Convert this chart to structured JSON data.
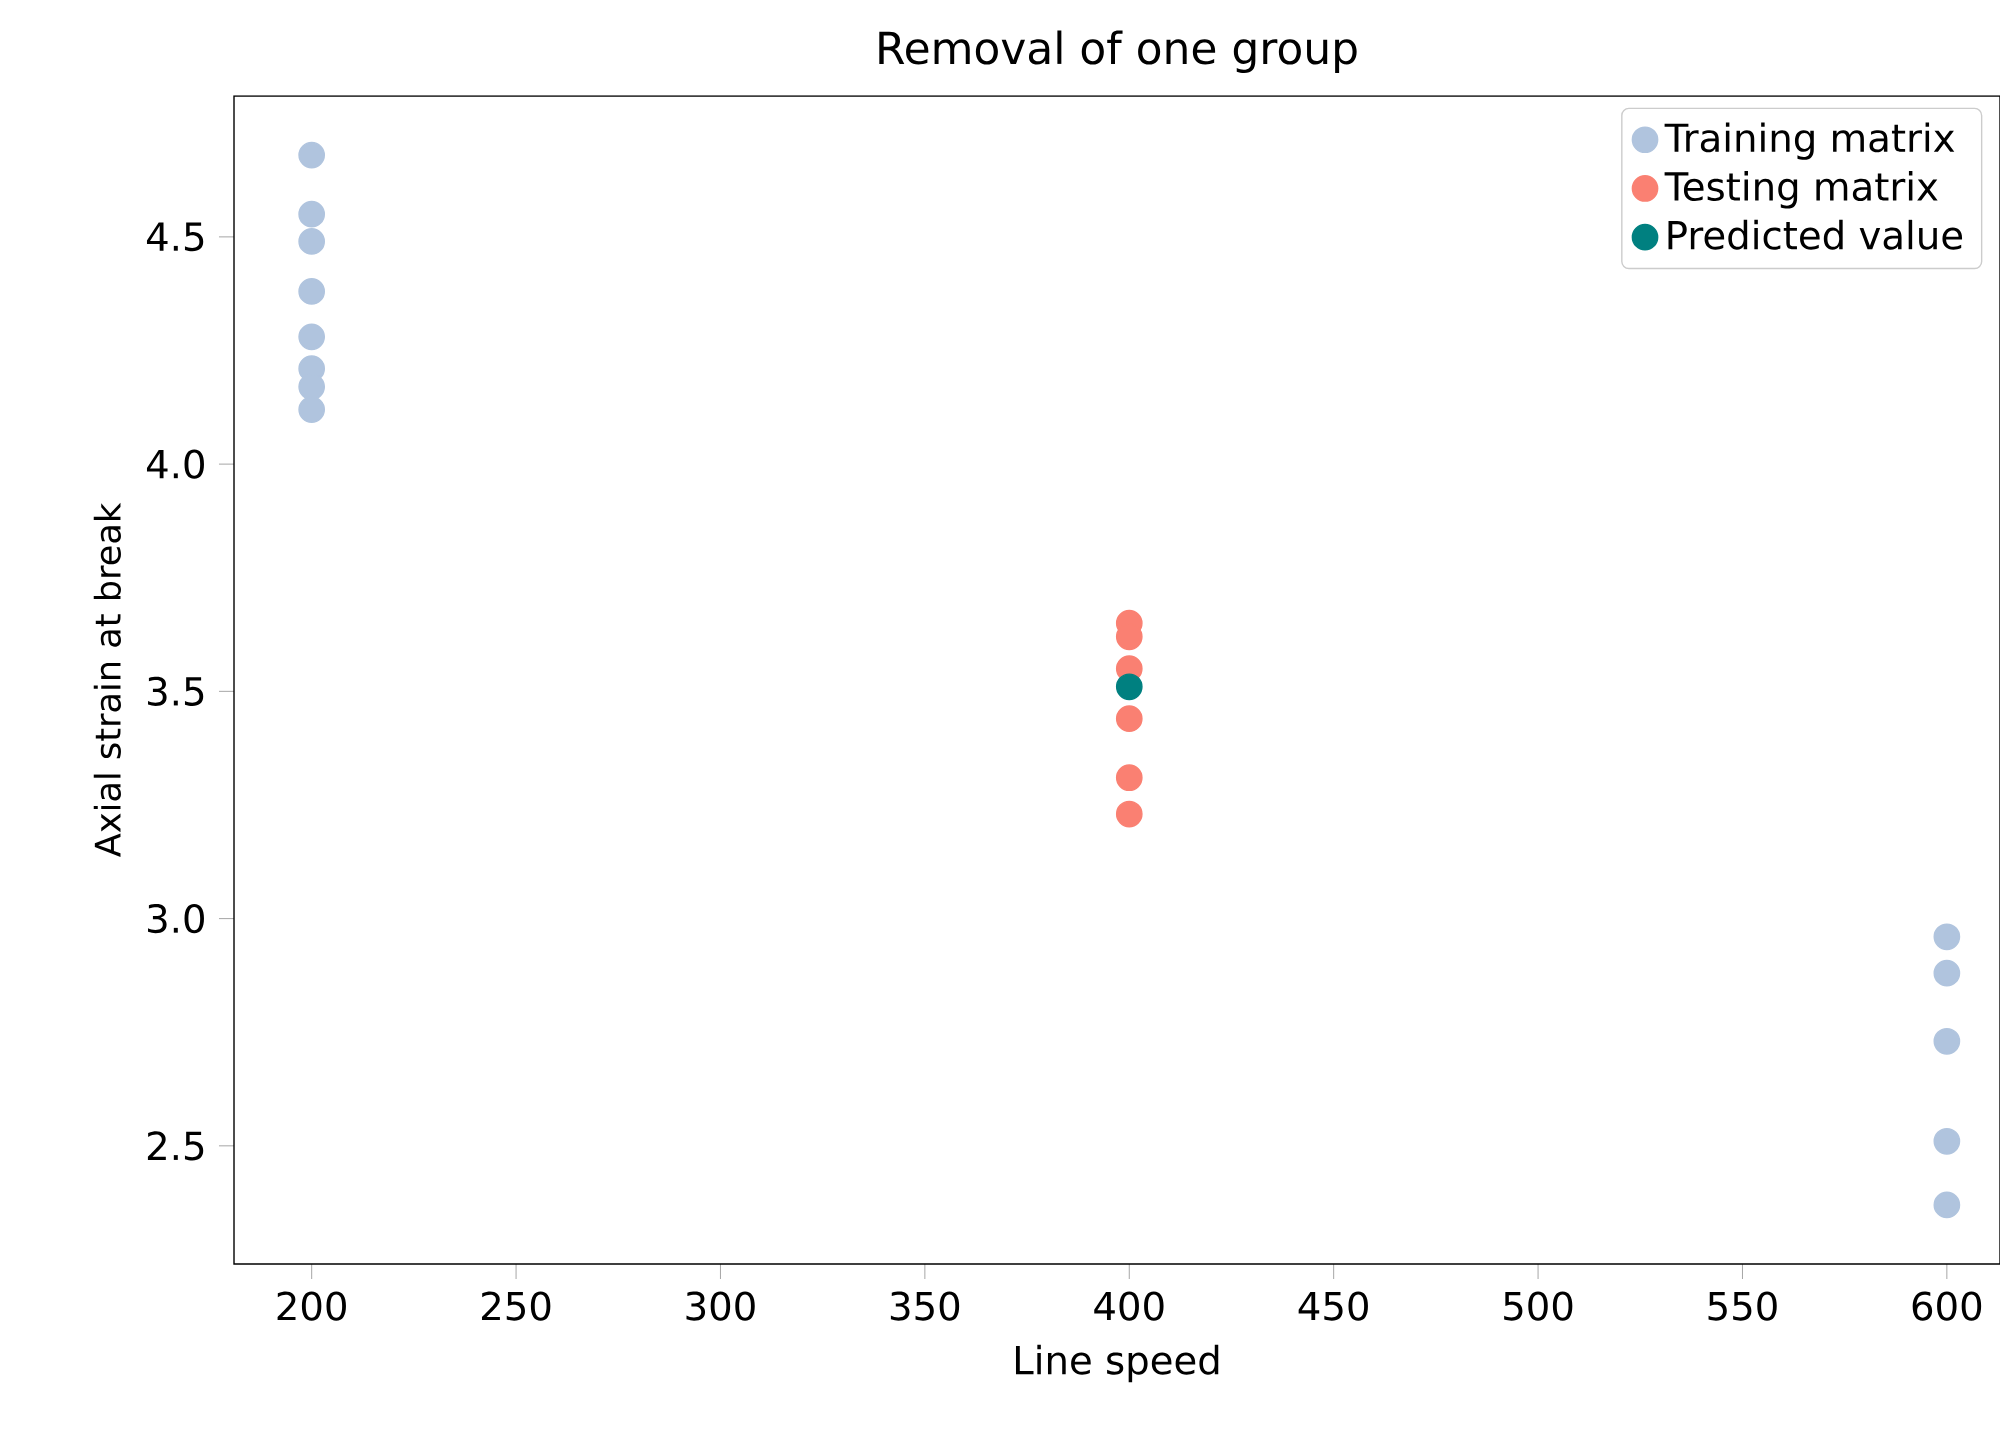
{
  "chart_data": {
    "type": "scatter",
    "title": "Removal of one group",
    "xlabel": "Line speed",
    "ylabel": "Axial strain at break",
    "xlim": [
      181,
      613
    ],
    "ylim": [
      2.24,
      4.81
    ],
    "xticks": [
      200,
      250,
      300,
      350,
      400,
      450,
      500,
      550,
      600
    ],
    "yticks": [
      {
        "value": 2.5,
        "label": "2.5"
      },
      {
        "value": 3.0,
        "label": "3.0"
      },
      {
        "value": 3.5,
        "label": "3.5"
      },
      {
        "value": 4.0,
        "label": "4.0"
      },
      {
        "value": 4.5,
        "label": "4.5"
      }
    ],
    "marker": "circle",
    "legend": "top right",
    "grid": false,
    "series": [
      {
        "name": "Training matrix",
        "color": "#b0c4de",
        "x": [
          200,
          200,
          200,
          200,
          200,
          200,
          200,
          200,
          600,
          600,
          600,
          600,
          600
        ],
        "values": [
          4.68,
          4.55,
          4.49,
          4.38,
          4.28,
          4.21,
          4.17,
          4.12,
          2.96,
          2.88,
          2.73,
          2.51,
          2.37
        ]
      },
      {
        "name": "Testing matrix",
        "color": "#fa8072",
        "x": [
          400,
          400,
          400,
          400,
          400,
          400
        ],
        "values": [
          3.65,
          3.62,
          3.55,
          3.44,
          3.31,
          3.23
        ]
      },
      {
        "name": "Predicted value",
        "color": "#008080",
        "x": [
          400
        ],
        "values": [
          3.51
        ]
      }
    ]
  }
}
